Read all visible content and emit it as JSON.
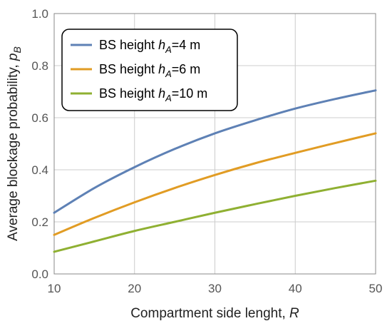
{
  "chart_data": {
    "type": "line",
    "xlabel_text": "Compartment side lenght, ",
    "xlabel_var": "R",
    "ylabel_text": "Average blockage probability, ",
    "ylabel_var": "p",
    "ylabel_sub": "B",
    "xlim": [
      10,
      50
    ],
    "ylim": [
      0,
      1
    ],
    "xticks": [
      10,
      20,
      30,
      40,
      50
    ],
    "xtick_labels": [
      "10",
      "20",
      "30",
      "40",
      "50"
    ],
    "yticks": [
      0,
      0.2,
      0.4,
      0.6,
      0.8,
      1.0
    ],
    "ytick_labels": [
      "0.0",
      "0.2",
      "0.4",
      "0.6",
      "0.8",
      "1.0"
    ],
    "grid": true,
    "legend_position": "top-left",
    "x": [
      10,
      15,
      20,
      25,
      30,
      35,
      40,
      45,
      50
    ],
    "series": [
      {
        "name_prefix": "BS height ",
        "name_var": "h",
        "name_sub": "A",
        "name_suffix": "=4 m",
        "color": "#5e81b5",
        "values": [
          0.235,
          0.33,
          0.41,
          0.48,
          0.54,
          0.59,
          0.635,
          0.672,
          0.705
        ]
      },
      {
        "name_prefix": "BS height ",
        "name_var": "h",
        "name_sub": "A",
        "name_suffix": "=6 m",
        "color": "#e19c24",
        "values": [
          0.15,
          0.215,
          0.275,
          0.33,
          0.38,
          0.425,
          0.465,
          0.503,
          0.54
        ]
      },
      {
        "name_prefix": "BS height ",
        "name_var": "h",
        "name_sub": "A",
        "name_suffix": "=10 m",
        "color": "#8fb032",
        "values": [
          0.085,
          0.125,
          0.165,
          0.2,
          0.235,
          0.268,
          0.3,
          0.33,
          0.358
        ]
      }
    ]
  }
}
